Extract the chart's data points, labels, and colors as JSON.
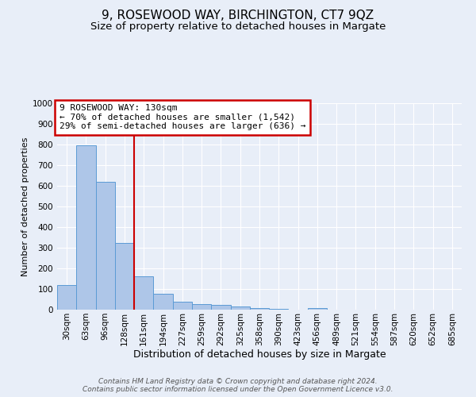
{
  "title": "9, ROSEWOOD WAY, BIRCHINGTON, CT7 9QZ",
  "subtitle": "Size of property relative to detached houses in Margate",
  "xlabel": "Distribution of detached houses by size in Margate",
  "ylabel": "Number of detached properties",
  "categories": [
    "30sqm",
    "63sqm",
    "96sqm",
    "128sqm",
    "161sqm",
    "194sqm",
    "227sqm",
    "259sqm",
    "292sqm",
    "325sqm",
    "358sqm",
    "390sqm",
    "423sqm",
    "456sqm",
    "489sqm",
    "521sqm",
    "554sqm",
    "587sqm",
    "620sqm",
    "652sqm",
    "685sqm"
  ],
  "values": [
    120,
    795,
    620,
    325,
    160,
    78,
    40,
    28,
    23,
    15,
    8,
    5,
    0,
    7,
    0,
    0,
    0,
    0,
    0,
    0,
    0
  ],
  "bar_color": "#aec6e8",
  "bar_edge_color": "#5b9bd5",
  "background_color": "#e8eef8",
  "grid_color": "#ffffff",
  "red_line_x": 3.5,
  "annotation_text": "9 ROSEWOOD WAY: 130sqm\n← 70% of detached houses are smaller (1,542)\n29% of semi-detached houses are larger (636) →",
  "annotation_box_color": "#ffffff",
  "annotation_box_edge_color": "#cc0000",
  "ylim": [
    0,
    1000
  ],
  "yticks": [
    0,
    100,
    200,
    300,
    400,
    500,
    600,
    700,
    800,
    900,
    1000
  ],
  "footer_text": "Contains HM Land Registry data © Crown copyright and database right 2024.\nContains public sector information licensed under the Open Government Licence v3.0.",
  "title_fontsize": 11,
  "subtitle_fontsize": 9.5,
  "xlabel_fontsize": 9,
  "ylabel_fontsize": 8,
  "tick_fontsize": 7.5,
  "annotation_fontsize": 8,
  "footer_fontsize": 6.5
}
